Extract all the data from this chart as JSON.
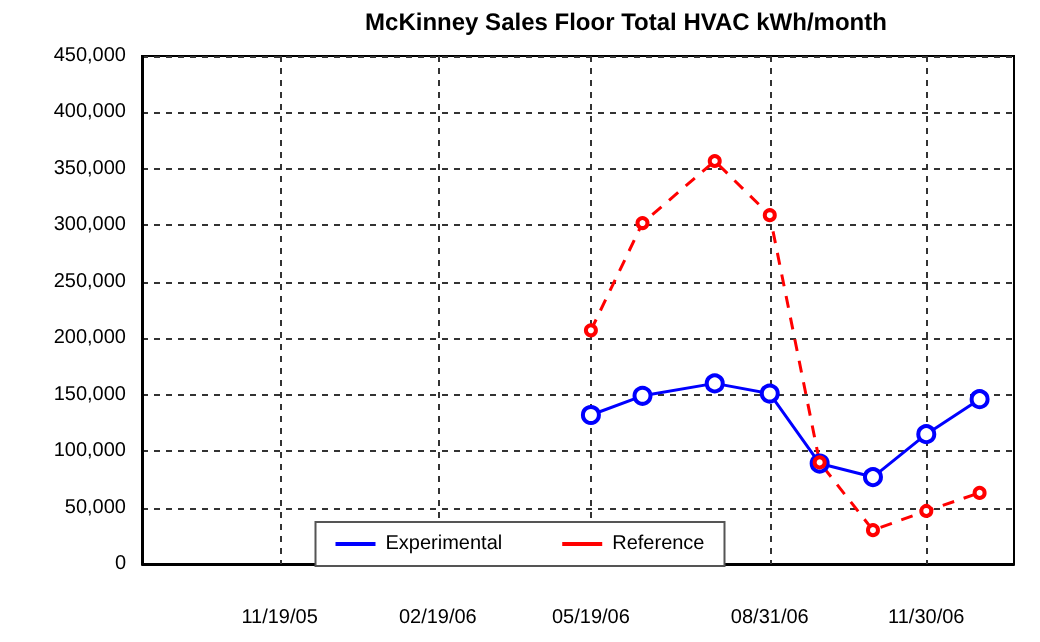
{
  "chart_data": {
    "type": "line",
    "title": "McKinney Sales Floor Total HVAC kWh/month",
    "x": [
      "2006-05-19",
      "2006-06-18",
      "2006-07-30",
      "2006-08-31",
      "2006-09-29",
      "2006-10-30",
      "2006-11-30",
      "2006-12-31"
    ],
    "series": [
      {
        "name": "Experimental",
        "color": "#0000ff",
        "line_style": "solid",
        "values": [
          132000,
          149000,
          160000,
          151000,
          89000,
          77000,
          115000,
          146000
        ]
      },
      {
        "name": "Reference",
        "color": "#ff0000",
        "line_style": "dashed",
        "values": [
          207000,
          302000,
          357000,
          309000,
          90000,
          30000,
          47000,
          63000
        ]
      }
    ],
    "xlim": [
      "2005-08-31",
      "2007-01-20"
    ],
    "xticks": [
      {
        "value": "2005-11-19",
        "label": "11/19/05"
      },
      {
        "value": "2006-02-19",
        "label": "02/19/06"
      },
      {
        "value": "2006-05-19",
        "label": "05/19/06"
      },
      {
        "value": "2006-08-31",
        "label": "08/31/06"
      },
      {
        "value": "2006-11-30",
        "label": "11/30/06"
      }
    ],
    "ylim": [
      0,
      450000
    ],
    "yticks": [
      0,
      {
        "value": 50000,
        "label": "50,000"
      },
      {
        "value": 100000,
        "label": "100,000"
      },
      {
        "value": 150000,
        "label": "150,000"
      },
      {
        "value": 200000,
        "label": "200,000"
      },
      {
        "value": 250000,
        "label": "250,000"
      },
      {
        "value": 300000,
        "label": "300,000"
      },
      {
        "value": 350000,
        "label": "350,000"
      },
      {
        "value": 400000,
        "label": "400,000"
      },
      {
        "value": 450000,
        "label": "450,000"
      }
    ],
    "grid": true,
    "legend": "bottom",
    "marker": "circle"
  }
}
